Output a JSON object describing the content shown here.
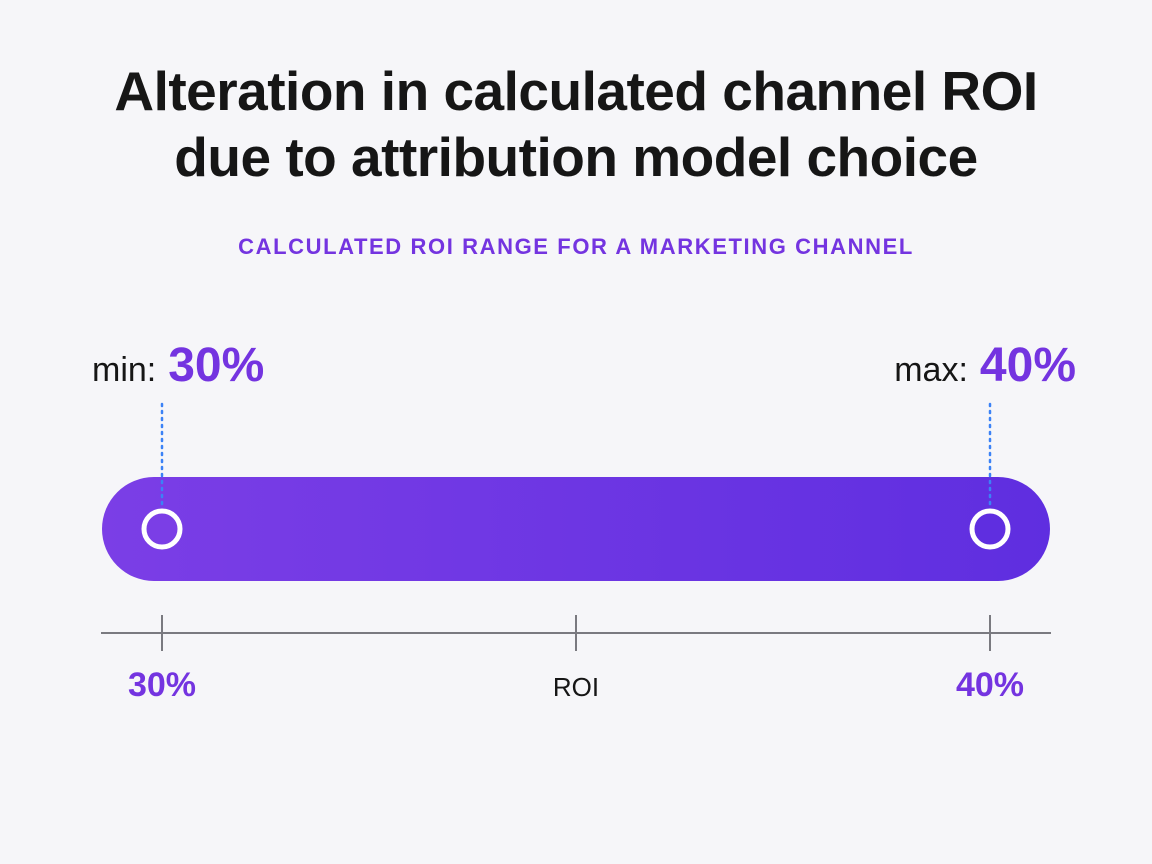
{
  "chart_data": {
    "type": "range",
    "title_lines": [
      "Alteration in calculated channel ROI",
      "due to attribution model choice"
    ],
    "subtitle": "CALCULATED ROI RANGE FOR A MARKETING CHANNEL",
    "xlabel": "ROI",
    "unit": "%",
    "min": {
      "key": "min:",
      "value": 30,
      "display": "30%"
    },
    "max": {
      "key": "max:",
      "value": 40,
      "display": "40%"
    },
    "xlim": [
      30,
      40
    ],
    "ticks": [
      {
        "value": 30,
        "label": "30%"
      },
      {
        "value": 40,
        "label": "40%"
      }
    ],
    "grid": false,
    "legend": "none"
  },
  "colors": {
    "accent": "#7434e0",
    "bar_start": "#7b3ee6",
    "bar_end": "#5f2ee0",
    "axis": "#7a7a80",
    "leader": "#3b82f6",
    "text": "#161616",
    "background": "#f6f6f9"
  }
}
